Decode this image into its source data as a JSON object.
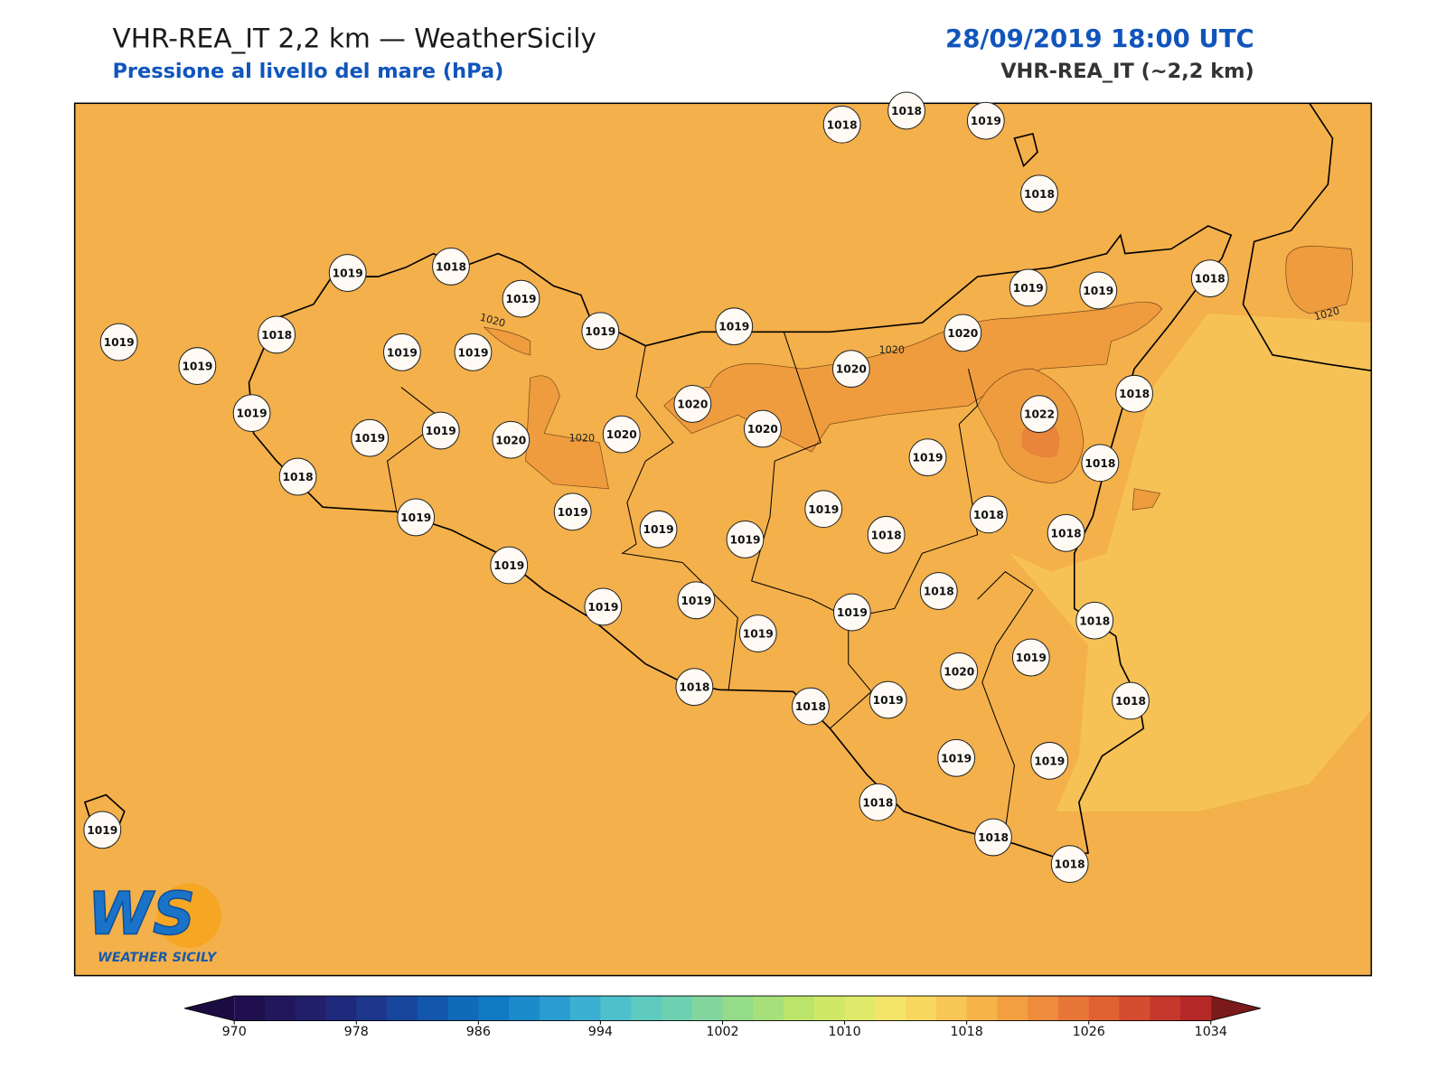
{
  "header": {
    "title": "VHR-REA_IT 2,2 km — WeatherSicily",
    "subtitle": "Pressione al livello del mare (hPa)",
    "datetime": "28/09/2019 18:00 UTC",
    "model": "VHR-REA_IT (~2,2 km)"
  },
  "map": {
    "stations": [
      1018,
      1018,
      1019,
      1018,
      1019,
      1018,
      1019,
      1019,
      1018,
      1019,
      1019,
      1019,
      1019,
      1019,
      1019,
      1019,
      1018,
      1020,
      1020,
      1020,
      1019,
      1019,
      1019,
      1020,
      1020,
      1020,
      1022,
      1018,
      1019,
      1018,
      1018,
      1019,
      1019,
      1019,
      1019,
      1019,
      1018,
      1018,
      1018,
      1019,
      1019,
      1019,
      1019,
      1019,
      1018,
      1018,
      1019,
      1020,
      1018,
      1018,
      1019,
      1018,
      1019,
      1019,
      1018,
      1018,
      1018,
      1019
    ],
    "contour_labels": [
      "1020",
      "1020",
      "1020",
      "1020"
    ],
    "fill_color": "#f4b04a",
    "high_color": "#ef9c3e",
    "peak_color": "#e8853a",
    "low_color": "#f6c255"
  },
  "logo": {
    "mark": "WS",
    "text": "WEATHER SICILY"
  },
  "colorbar": {
    "min": 970,
    "max": 1034,
    "ticks": [
      970,
      978,
      986,
      994,
      1002,
      1010,
      1018,
      1026,
      1034
    ],
    "colors": [
      "#1f0f4e",
      "#22175c",
      "#221f6b",
      "#1f2a7c",
      "#1c378c",
      "#17469c",
      "#1257ab",
      "#0f6ab9",
      "#1079c4",
      "#1a8acb",
      "#2a9cd1",
      "#3bb0d2",
      "#4ec0cb",
      "#5ecac0",
      "#6dd0b0",
      "#82d69d",
      "#94db8a",
      "#a7e07a",
      "#bbe46a",
      "#cfe866",
      "#e0ea6a",
      "#f4e56a",
      "#f9d75e",
      "#f8c656",
      "#f5b34a",
      "#f29f42",
      "#ee8b3d",
      "#e87638",
      "#e06233",
      "#d44d30",
      "#c6382c",
      "#b52828"
    ],
    "under_color": "#1a0b40",
    "over_color": "#7a1a1a"
  }
}
